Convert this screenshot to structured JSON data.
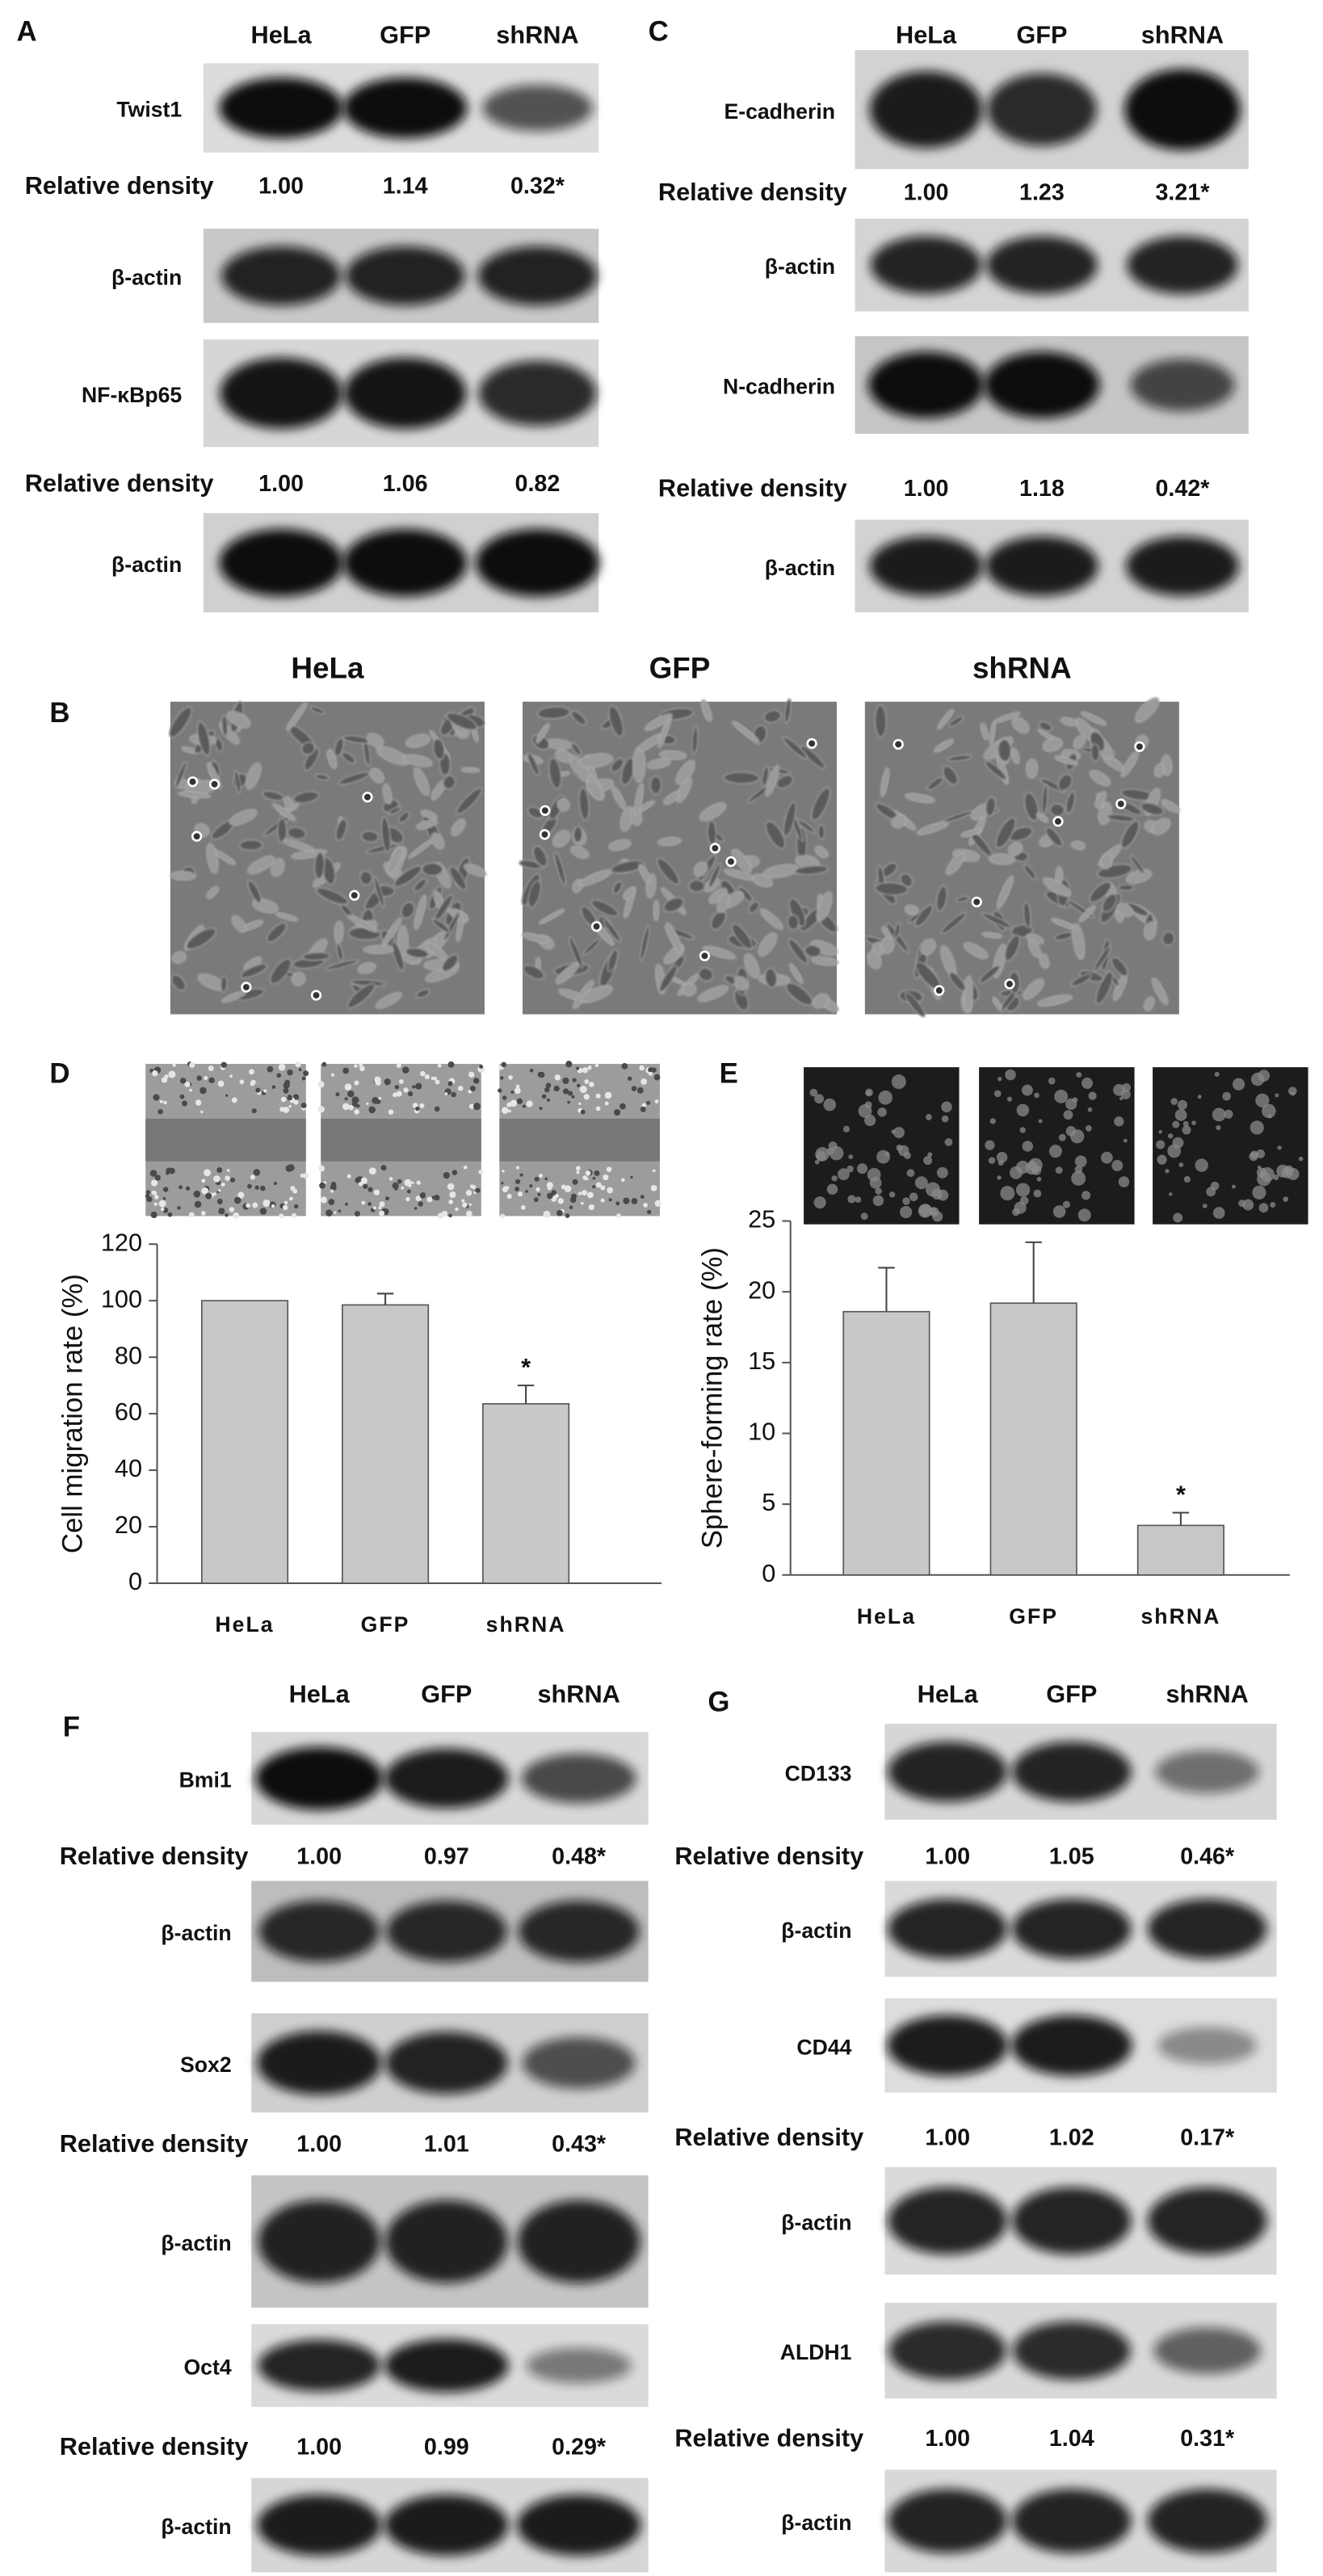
{
  "blot_panels": [
    {
      "label": "A",
      "columns": [
        "HeLa",
        "GFP",
        "shRNA"
      ],
      "rows": [
        {
          "protein": "Twist1"
        },
        {
          "label": "Relative density",
          "densities": [
            "1.00",
            "1.14",
            "0.32*"
          ]
        },
        {
          "protein": "β-actin"
        },
        {
          "protein": "NF-κBp65"
        },
        {
          "label": "Relative density",
          "densities": [
            "1.00",
            "1.06",
            "0.82"
          ]
        },
        {
          "protein": "β-actin"
        }
      ]
    },
    {
      "label": "C",
      "columns": [
        "HeLa",
        "GFP",
        "shRNA"
      ],
      "rows": [
        {
          "protein": "E-cadherin"
        },
        {
          "label": "Relative density",
          "densities": [
            "1.00",
            "1.23",
            "3.21*"
          ]
        },
        {
          "protein": "β-actin"
        },
        {
          "protein": "N-cadherin"
        },
        {
          "label": "Relative density",
          "densities": [
            "1.00",
            "1.18",
            "0.42*"
          ]
        },
        {
          "protein": "β-actin"
        }
      ]
    },
    {
      "label": "F",
      "columns": [
        "HeLa",
        "GFP",
        "shRNA"
      ],
      "rows": [
        {
          "protein": "Bmi1"
        },
        {
          "label": "Relative density",
          "densities": [
            "1.00",
            "0.97",
            "0.48*"
          ]
        },
        {
          "protein": "β-actin"
        },
        {
          "protein": "Sox2"
        },
        {
          "label": "Relative density",
          "densities": [
            "1.00",
            "1.01",
            "0.43*"
          ]
        },
        {
          "protein": "β-actin"
        },
        {
          "protein": "Oct4"
        },
        {
          "label": "Relative density",
          "densities": [
            "1.00",
            "0.99",
            "0.29*"
          ]
        },
        {
          "protein": "β-actin"
        }
      ]
    },
    {
      "label": "G",
      "columns": [
        "HeLa",
        "GFP",
        "shRNA"
      ],
      "rows": [
        {
          "protein": "CD133"
        },
        {
          "label": "Relative density",
          "densities": [
            "1.00",
            "1.05",
            "0.46*"
          ]
        },
        {
          "protein": "β-actin"
        },
        {
          "protein": "CD44"
        },
        {
          "label": "Relative density",
          "densities": [
            "1.00",
            "1.02",
            "0.17*"
          ]
        },
        {
          "protein": "β-actin"
        },
        {
          "protein": "ALDH1"
        },
        {
          "label": "Relative density",
          "densities": [
            "1.00",
            "1.04",
            "0.31*"
          ]
        },
        {
          "protein": "β-actin"
        }
      ]
    }
  ],
  "image_panel": {
    "label": "B",
    "columns": [
      "HeLa",
      "GFP",
      "shRNA"
    ]
  },
  "chart_data": [
    {
      "type": "bar",
      "panel": "D",
      "y_label": "Cell migration rate (%)",
      "categories": [
        "HeLa",
        "GFP",
        "shRNA"
      ],
      "values": [
        100,
        98.5,
        63.5
      ],
      "errors": [
        null,
        4,
        6.5
      ],
      "significance": [
        null,
        null,
        "*"
      ],
      "color": "#c8c8c8",
      "ylim": [
        0,
        120
      ],
      "yticks": [
        0,
        20,
        40,
        60,
        80,
        100,
        120
      ]
    },
    {
      "type": "bar",
      "panel": "E",
      "y_label": "Sphere-forming rate (%)",
      "categories": [
        "HeLa",
        "GFP",
        "shRNA"
      ],
      "values": [
        18.6,
        19.2,
        3.5
      ],
      "errors": [
        3.1,
        4.3,
        0.9
      ],
      "significance": [
        null,
        null,
        "*"
      ],
      "color": "#c8c8c8",
      "ylim": [
        0,
        25
      ],
      "yticks": [
        0,
        5,
        10,
        15,
        20,
        25
      ]
    }
  ]
}
